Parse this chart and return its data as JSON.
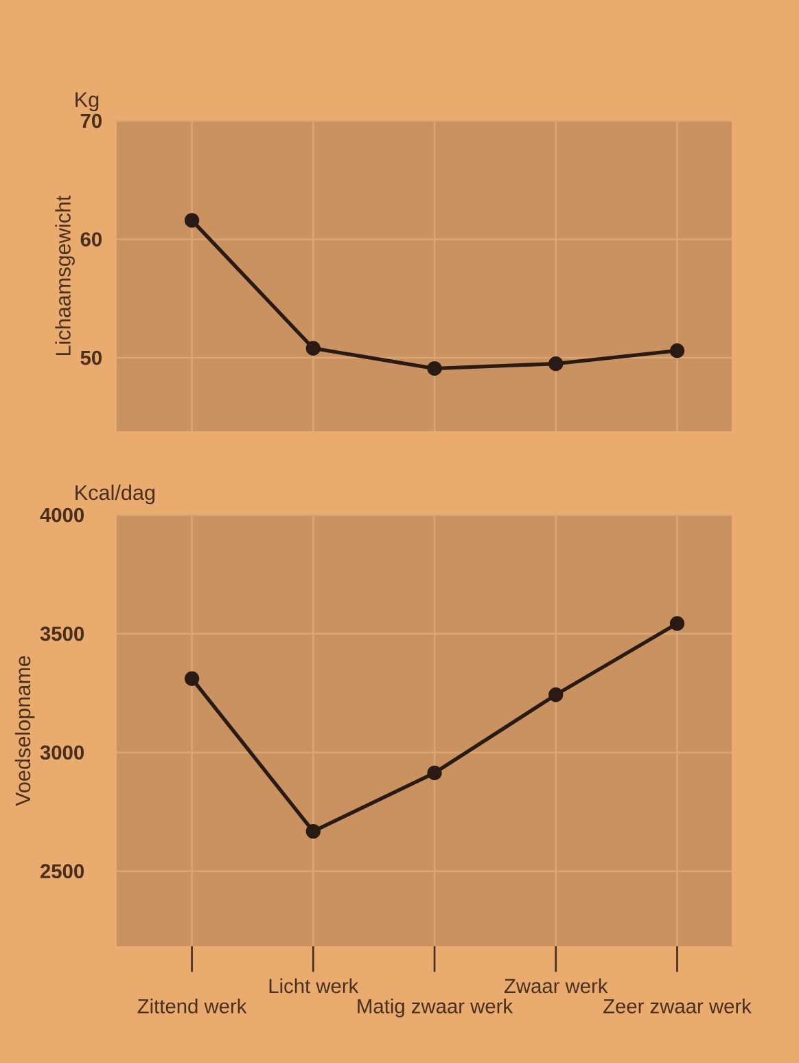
{
  "chart_data": [
    {
      "type": "line",
      "categories": [
        null,
        null,
        null,
        null,
        null
      ],
      "series": [
        {
          "color": "#2a1a14",
          "values": [
            61.6,
            50.8,
            49.1,
            49.5,
            50.6
          ]
        }
      ],
      "ylabel": "Lichaamsgewicht",
      "annotations": [
        "Kg"
      ],
      "ylim": [
        43.8,
        70
      ],
      "yticks": [
        50,
        60,
        70
      ],
      "grid": true,
      "marker": "circle",
      "line_style": "solid",
      "tick_labels": "y"
    },
    {
      "type": "line",
      "categories": [
        "Zittend werk",
        "Licht werk",
        "Matig zwaar werk",
        "Zwaar werk",
        "Zeer zwaar werk"
      ],
      "series": [
        {
          "color": "#2a1a14",
          "values": [
            3311,
            2668,
            2914,
            3243,
            3543
          ]
        }
      ],
      "ylabel": "Voedselopname",
      "annotations": [
        "Kcal/dag"
      ],
      "ylim": [
        2184,
        4000
      ],
      "yticks": [
        2500,
        3000,
        3500,
        4000
      ],
      "grid": true,
      "marker": "circle",
      "line_style": "solid"
    }
  ]
}
